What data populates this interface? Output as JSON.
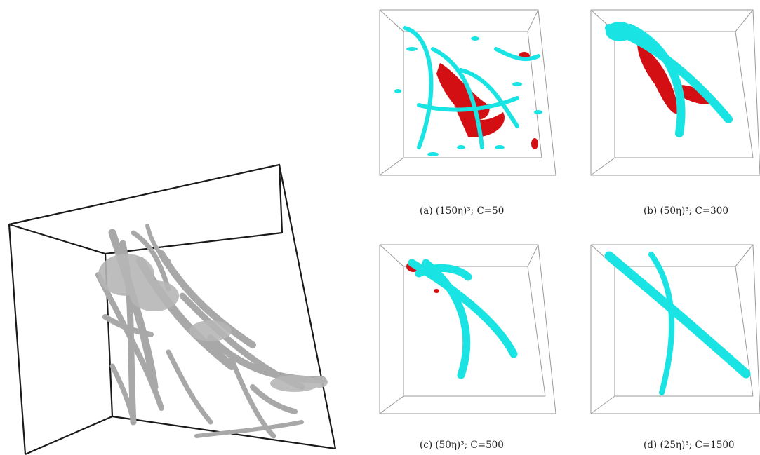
{
  "figure": {
    "main_render": {
      "box_color": "#1a1a1a",
      "tube_color": "#a8a8a8"
    },
    "panels": [
      {
        "id": "a",
        "caption": "(a)  (150η)³; C=50"
      },
      {
        "id": "b",
        "caption": "(b)  (50η)³; C=300"
      },
      {
        "id": "c",
        "caption": "(c)  (50η)³; C=500"
      },
      {
        "id": "d",
        "caption": "(d)  (25η)³; C=1500"
      }
    ],
    "colors": {
      "cyan": "#19e3e3",
      "cyan_shade": "#0a9aa0",
      "red": "#d40f14",
      "box_line": "#9a9a9a"
    }
  }
}
